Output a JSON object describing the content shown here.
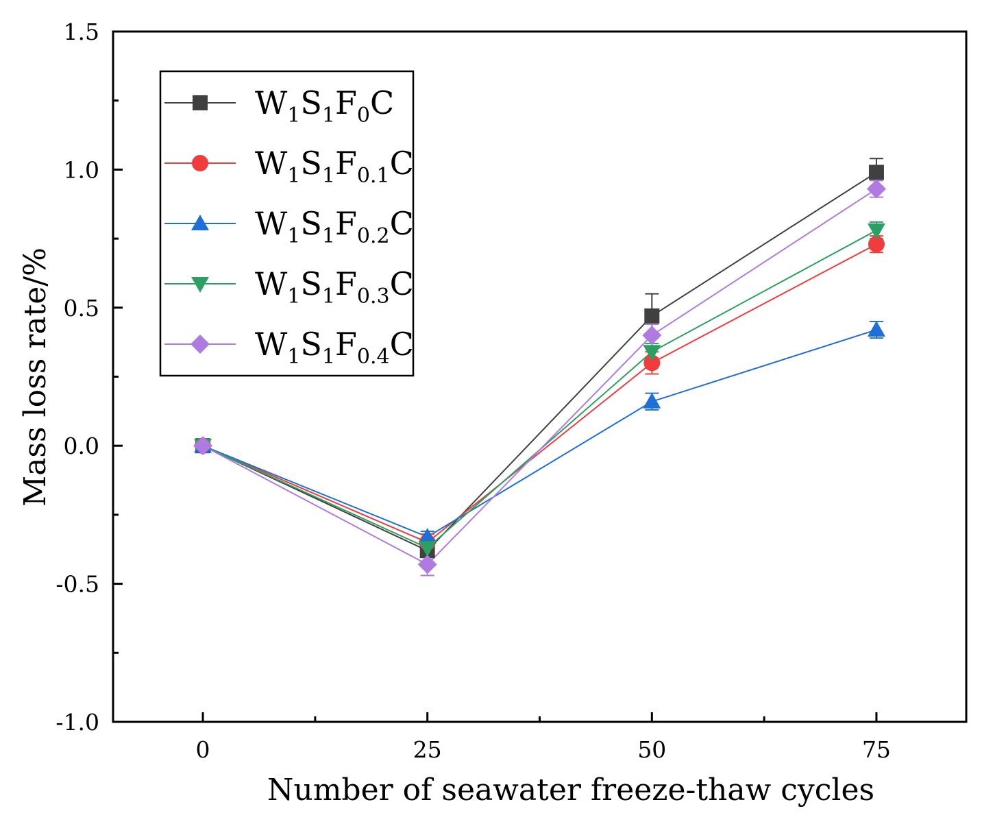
{
  "chart_data": {
    "type": "line",
    "title": "",
    "xlabel": "Number of seawater freeze-thaw cycles",
    "ylabel": "Mass loss rate/%",
    "x": [
      0,
      25,
      50,
      75
    ],
    "xticks": [
      "0",
      "25",
      "50",
      "75"
    ],
    "yticks": [
      "-1.0",
      "-0.5",
      "0.0",
      "0.5",
      "1.0",
      "1.5"
    ],
    "ytick_values": [
      -1.0,
      -0.5,
      0.0,
      0.5,
      1.0,
      1.5
    ],
    "xlim": [
      -10,
      85
    ],
    "ylim": [
      -1.0,
      1.5
    ],
    "grid": false,
    "legend_position": "top-left",
    "series": [
      {
        "name": "W1S1F0C",
        "label_parts": [
          "W",
          "1",
          "S",
          "1",
          "F",
          "0",
          "C"
        ],
        "color": "#404040",
        "marker": "square",
        "values": [
          0,
          -0.38,
          0.47,
          0.99
        ],
        "errors": [
          0.02,
          0.04,
          0.08,
          0.05
        ]
      },
      {
        "name": "W1S1F0.1C",
        "label_parts": [
          "W",
          "1",
          "S",
          "1",
          "F",
          "0.1",
          "C"
        ],
        "color": "#f03c3c",
        "marker": "circle",
        "values": [
          0,
          -0.35,
          0.3,
          0.73
        ],
        "errors": [
          0.02,
          0.03,
          0.04,
          0.03
        ]
      },
      {
        "name": "W1S1F0.2C",
        "label_parts": [
          "W",
          "1",
          "S",
          "1",
          "F",
          "0.2",
          "C"
        ],
        "color": "#1f6fd8",
        "marker": "triangle-up",
        "values": [
          0,
          -0.33,
          0.16,
          0.42
        ],
        "errors": [
          0.02,
          0.02,
          0.03,
          0.03
        ]
      },
      {
        "name": "W1S1F0.3C",
        "label_parts": [
          "W",
          "1",
          "S",
          "1",
          "F",
          "0.3",
          "C"
        ],
        "color": "#2ca062",
        "marker": "triangle-down",
        "values": [
          0,
          -0.37,
          0.34,
          0.78
        ],
        "errors": [
          0.02,
          0.03,
          0.03,
          0.03
        ]
      },
      {
        "name": "W1S1F0.4C",
        "label_parts": [
          "W",
          "1",
          "S",
          "1",
          "F",
          "0.4",
          "C"
        ],
        "color": "#b07be0",
        "marker": "diamond",
        "values": [
          0,
          -0.43,
          0.4,
          0.93
        ],
        "errors": [
          0.02,
          0.04,
          0.04,
          0.03
        ]
      }
    ]
  }
}
